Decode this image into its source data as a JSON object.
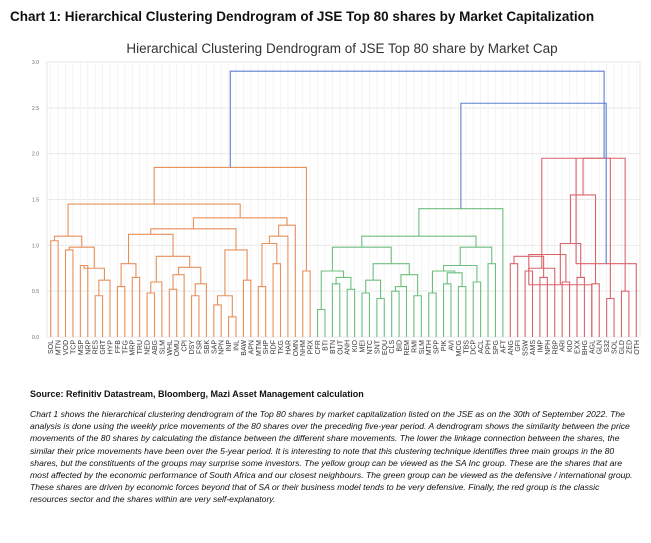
{
  "document": {
    "heading": "Chart 1: Hierarchical Clustering Dendrogram of JSE Top 80 shares by Market Capitalization",
    "source": "Source: Refinitiv Datastream, Bloomberg, Mazi Asset Management calculation",
    "paragraph": "Chart 1 shows the hierarchical clustering dendrogram of the Top 80 shares by market capitalization listed on the JSE as on the 30th of September 2022. The analysis is done using the weekly price movements of the 80 shares over the preceding five-year period. A dendrogram shows the similarity between the price movements of the 80 shares by calculating the distance between the different share movements. The lower the linkage connection between the shares, the similar their price movements have been over the 5-year period. It is interesting to note that this clustering technique identifies three main groups in the 80 shares, but the constituents of the groups may surprise some investors. The yellow group can be viewed as the SA Inc group. These are the shares that are most affected by the economic performance of South Africa and our closest neighbours. The green group can be viewed as the defensive / international group. These shares are driven by economic forces beyond that of SA or their business model tends to be very defensive. Finally, the red group is the classic resources sector and the shares within are very self-explanatory."
  },
  "chart_data": {
    "type": "dendrogram",
    "title": "Hierarchical Clustering Dendrogram of JSE Top 80 share by Market Cap",
    "ylim": [
      0,
      3.0
    ],
    "yticks": [
      "0.0",
      "0.5",
      "1.0",
      "1.5",
      "2.0",
      "2.5",
      "3.0"
    ],
    "grid": true,
    "colors": {
      "orange": "#e8905a",
      "green": "#6dbf7e",
      "red": "#d9646a",
      "blue": "#5b7fd0"
    },
    "leaves": [
      "SOL",
      "MTN",
      "VOD",
      "TCP",
      "MSP",
      "NRP",
      "RES",
      "GRT",
      "HYP",
      "FFB",
      "TFG",
      "MRP",
      "TRU",
      "NED",
      "ABG",
      "SLM",
      "WHL",
      "OMU",
      "CPI",
      "DSY",
      "FSR",
      "SBK",
      "SAP",
      "NPN",
      "INP",
      "INL",
      "BAW",
      "APN",
      "MTM",
      "SHP",
      "RDF",
      "TKG",
      "HAR",
      "OMN",
      "NHM",
      "PRX",
      "CFR",
      "BTI",
      "BTN",
      "OUT",
      "ANH",
      "KIO",
      "MEI",
      "NTC",
      "SNT",
      "EQU",
      "CLS",
      "BID",
      "REM",
      "RMI",
      "SLM2",
      "MTH",
      "SPP",
      "PIK",
      "AVI",
      "MCG",
      "TBS",
      "DCP",
      "ACL",
      "PPH",
      "SPG",
      "AFT",
      "ANG",
      "GFI",
      "SSW",
      "AMS",
      "IMP",
      "NPH",
      "RBP",
      "ARI",
      "KIO2",
      "EXX",
      "BHG",
      "AGL",
      "GLN",
      "S32",
      "SOL2",
      "GLD",
      "ZED",
      "OTH"
    ],
    "leaf_labels": [
      "SOL",
      "MTN",
      "VOD",
      "TCP",
      "MSP",
      "NRP",
      "RES",
      "GRT",
      "HYP",
      "FFB",
      "TFG",
      "MRP",
      "TRU",
      "NED",
      "ABG",
      "SLM",
      "WHL",
      "OMU",
      "CPI",
      "DSY",
      "FSR",
      "SBK",
      "SAP",
      "NPN",
      "INP",
      "INL",
      "BAW",
      "APN",
      "MTM",
      "SHP",
      "RDF",
      "TKG",
      "HAR",
      "OMN",
      "NHM",
      "PRX",
      "CFR",
      "BTI",
      "BTN",
      "OUT",
      "ANH",
      "KIO",
      "MEI",
      "NTC",
      "SNT",
      "EQU",
      "CLS",
      "BID",
      "REM",
      "RMI",
      "SLM",
      "MTH",
      "SPP",
      "PIK",
      "AVI",
      "MCG",
      "TBS",
      "DCP",
      "ACL",
      "PPH",
      "SPG",
      "AFT",
      "ANG",
      "GFI",
      "SSW",
      "AMS",
      "IMP",
      "NPH",
      "RBP",
      "ARI",
      "KIO",
      "EXX",
      "BHG",
      "AGL",
      "GLN",
      "S32",
      "SOL",
      "GLD",
      "ZED",
      "OTH"
    ],
    "merges": [
      {
        "a": "L0",
        "b": "L1",
        "h": 1.05,
        "c": "orange"
      },
      {
        "a": "L2",
        "b": "L3",
        "h": 0.95,
        "c": "orange"
      },
      {
        "a": "L4",
        "b": "L5",
        "h": 0.78,
        "c": "orange"
      },
      {
        "a": "L6",
        "b": "L7",
        "h": 0.45,
        "c": "orange"
      },
      {
        "a": "M3",
        "b": "L8",
        "h": 0.62,
        "c": "orange"
      },
      {
        "a": "M2",
        "b": "M4",
        "h": 0.75,
        "c": "orange"
      },
      {
        "a": "M1",
        "b": "M5",
        "h": 0.98,
        "c": "orange"
      },
      {
        "a": "M0",
        "b": "M6",
        "h": 1.1,
        "c": "orange"
      },
      {
        "a": "L9",
        "b": "L10",
        "h": 0.55,
        "c": "orange"
      },
      {
        "a": "L11",
        "b": "L12",
        "h": 0.65,
        "c": "orange"
      },
      {
        "a": "M8",
        "b": "M9",
        "h": 0.8,
        "c": "orange"
      },
      {
        "a": "L13",
        "b": "L14",
        "h": 0.48,
        "c": "orange"
      },
      {
        "a": "M11",
        "b": "L15",
        "h": 0.6,
        "c": "orange"
      },
      {
        "a": "L16",
        "b": "L17",
        "h": 0.52,
        "c": "orange"
      },
      {
        "a": "M13",
        "b": "L18",
        "h": 0.68,
        "c": "orange"
      },
      {
        "a": "L19",
        "b": "L20",
        "h": 0.45,
        "c": "orange"
      },
      {
        "a": "M15",
        "b": "L21",
        "h": 0.58,
        "c": "orange"
      },
      {
        "a": "M14",
        "b": "M16",
        "h": 0.76,
        "c": "orange"
      },
      {
        "a": "M12",
        "b": "M17",
        "h": 0.88,
        "c": "orange"
      },
      {
        "a": "M10",
        "b": "M18",
        "h": 1.12,
        "c": "orange"
      },
      {
        "a": "L22",
        "b": "L23",
        "h": 0.35,
        "c": "orange"
      },
      {
        "a": "L24",
        "b": "L25",
        "h": 0.22,
        "c": "orange"
      },
      {
        "a": "M20",
        "b": "M21",
        "h": 0.45,
        "c": "orange"
      },
      {
        "a": "L26",
        "b": "L27",
        "h": 0.62,
        "c": "orange"
      },
      {
        "a": "M22",
        "b": "M23",
        "h": 0.95,
        "c": "orange"
      },
      {
        "a": "M19",
        "b": "M24",
        "h": 1.18,
        "c": "orange"
      },
      {
        "a": "L28",
        "b": "L29",
        "h": 0.55,
        "c": "orange"
      },
      {
        "a": "L30",
        "b": "L31",
        "h": 0.8,
        "c": "orange"
      },
      {
        "a": "M26",
        "b": "M27",
        "h": 1.02,
        "c": "orange"
      },
      {
        "a": "M28",
        "b": "L32",
        "h": 1.1,
        "c": "orange"
      },
      {
        "a": "M29",
        "b": "L33",
        "h": 1.22,
        "c": "orange"
      },
      {
        "a": "M25",
        "b": "M30",
        "h": 1.3,
        "c": "orange"
      },
      {
        "a": "M7",
        "b": "M31",
        "h": 1.45,
        "c": "orange"
      },
      {
        "a": "L34",
        "b": "L35",
        "h": 0.72,
        "c": "orange"
      },
      {
        "a": "M32",
        "b": "M33",
        "h": 1.85,
        "c": "orange"
      },
      {
        "a": "L36",
        "b": "L37",
        "h": 0.3,
        "c": "green"
      },
      {
        "a": "L38",
        "b": "L39",
        "h": 0.58,
        "c": "green"
      },
      {
        "a": "L40",
        "b": "L41",
        "h": 0.52,
        "c": "green"
      },
      {
        "a": "M36",
        "b": "M37",
        "h": 0.65,
        "c": "green"
      },
      {
        "a": "M35",
        "b": "M38",
        "h": 0.72,
        "c": "green"
      },
      {
        "a": "L42",
        "b": "L43",
        "h": 0.48,
        "c": "green"
      },
      {
        "a": "L44",
        "b": "L45",
        "h": 0.42,
        "c": "green"
      },
      {
        "a": "M40",
        "b": "M41",
        "h": 0.62,
        "c": "green"
      },
      {
        "a": "L46",
        "b": "L47",
        "h": 0.5,
        "c": "green"
      },
      {
        "a": "M43",
        "b": "L48",
        "h": 0.55,
        "c": "green"
      },
      {
        "a": "L49",
        "b": "L50",
        "h": 0.45,
        "c": "green"
      },
      {
        "a": "M44",
        "b": "M45",
        "h": 0.68,
        "c": "green"
      },
      {
        "a": "M42",
        "b": "M46",
        "h": 0.8,
        "c": "green"
      },
      {
        "a": "M39",
        "b": "M47",
        "h": 0.98,
        "c": "green"
      },
      {
        "a": "L51",
        "b": "L52",
        "h": 0.48,
        "c": "green"
      },
      {
        "a": "L53",
        "b": "L54",
        "h": 0.58,
        "c": "green"
      },
      {
        "a": "L55",
        "b": "L56",
        "h": 0.55,
        "c": "green"
      },
      {
        "a": "M50",
        "b": "M51",
        "h": 0.7,
        "c": "green"
      },
      {
        "a": "M49",
        "b": "M52",
        "h": 0.72,
        "c": "green"
      },
      {
        "a": "L57",
        "b": "L58",
        "h": 0.6,
        "c": "green"
      },
      {
        "a": "M53",
        "b": "M54",
        "h": 0.78,
        "c": "green"
      },
      {
        "a": "L59",
        "b": "L60",
        "h": 0.8,
        "c": "green"
      },
      {
        "a": "M55",
        "b": "M56",
        "h": 0.98,
        "c": "green"
      },
      {
        "a": "M48",
        "b": "M57",
        "h": 1.1,
        "c": "green"
      },
      {
        "a": "M58",
        "b": "L61",
        "h": 1.4,
        "c": "green"
      },
      {
        "a": "L62",
        "b": "L63",
        "h": 0.8,
        "c": "red"
      },
      {
        "a": "L64",
        "b": "L65",
        "h": 0.72,
        "c": "red"
      },
      {
        "a": "L66",
        "b": "L67",
        "h": 0.65,
        "c": "red"
      },
      {
        "a": "M61",
        "b": "L68",
        "h": 0.75,
        "c": "red"
      },
      {
        "a": "M60",
        "b": "M62",
        "h": 0.88,
        "c": "red"
      },
      {
        "a": "L69",
        "b": "L70",
        "h": 0.6,
        "c": "red"
      },
      {
        "a": "L71",
        "b": "L72",
        "h": 0.65,
        "c": "red"
      },
      {
        "a": "M64",
        "b": "M65",
        "h": 0.9,
        "c": "red"
      },
      {
        "a": "M64",
        "b": "L73",
        "h": 0.57,
        "c": "red"
      },
      {
        "a": "L73",
        "b": "L74",
        "h": 0.58,
        "c": "red"
      },
      {
        "a": "M66",
        "b": "M68",
        "h": 1.02,
        "c": "red"
      },
      {
        "a": "L75",
        "b": "L76",
        "h": 0.42,
        "c": "red"
      },
      {
        "a": "M69",
        "b": "M70",
        "h": 1.55,
        "c": "red"
      },
      {
        "a": "M63",
        "b": "M71",
        "h": 1.95,
        "c": "red"
      },
      {
        "a": "L77",
        "b": "L78",
        "h": 0.5,
        "c": "red"
      },
      {
        "a": "L79",
        "b": "M73",
        "h": 0.8,
        "c": "red"
      },
      {
        "a": "M72",
        "b": "M74",
        "h": 1.95,
        "c": "red"
      },
      {
        "a": "M59",
        "b": "M75",
        "h": 2.55,
        "c": "blue"
      },
      {
        "a": "M34",
        "b": "M76",
        "h": 2.9,
        "c": "blue"
      }
    ]
  }
}
